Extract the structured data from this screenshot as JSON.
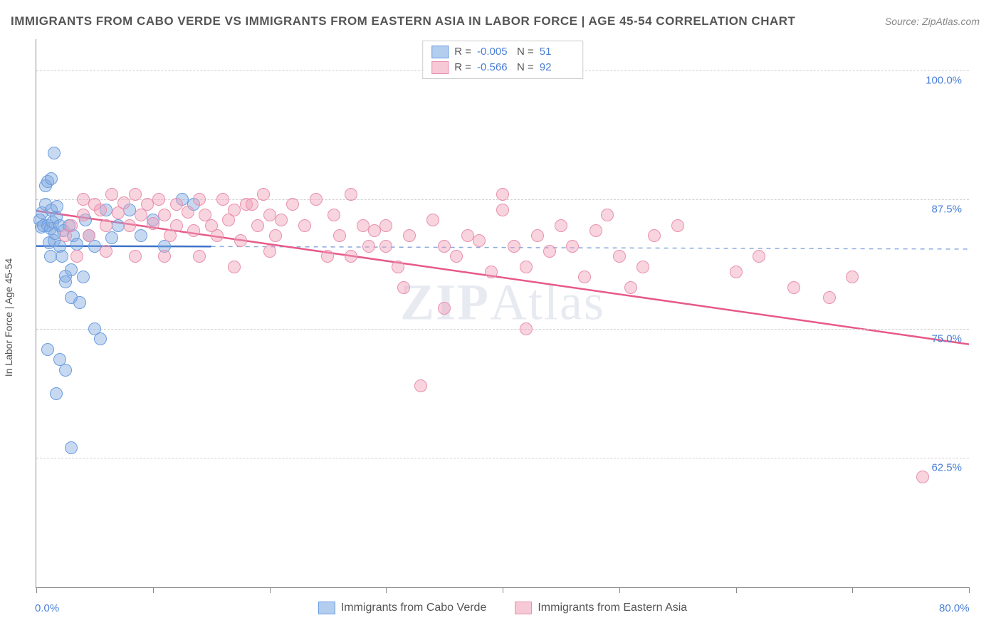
{
  "title": "IMMIGRANTS FROM CABO VERDE VS IMMIGRANTS FROM EASTERN ASIA IN LABOR FORCE | AGE 45-54 CORRELATION CHART",
  "source": "Source: ZipAtlas.com",
  "watermark_a": "ZIP",
  "watermark_b": "Atlas",
  "y_axis_title": "In Labor Force | Age 45-54",
  "chart": {
    "type": "scatter",
    "xlim": [
      0,
      80
    ],
    "ylim": [
      50,
      103
    ],
    "x_ticks": [
      0,
      10,
      20,
      30,
      40,
      50,
      60,
      70,
      80
    ],
    "x_tick_labels_shown": {
      "0": "0.0%",
      "80": "80.0%"
    },
    "y_ticks": [
      62.5,
      75.0,
      87.5,
      100.0
    ],
    "y_tick_labels": [
      "62.5%",
      "75.0%",
      "87.5%",
      "100.0%"
    ],
    "grid_color": "#d0d0d0",
    "background_color": "#ffffff",
    "marker_radius": 8,
    "marker_border_width": 1.5,
    "series": [
      {
        "name": "Immigrants from Cabo Verde",
        "color_fill": "rgba(130,170,225,0.45)",
        "color_stroke": "#6a9de0",
        "legend_swatch_fill": "#b3cdef",
        "legend_swatch_border": "#6a9de0",
        "r": "-0.005",
        "n": "51",
        "trend": {
          "x1": 0,
          "y1": 83.0,
          "x2": 15,
          "y2": 82.95,
          "dash_x2": 80,
          "dash_y2": 82.7,
          "color": "#3e73c9",
          "width": 2.5
        },
        "points": [
          [
            0.3,
            85.5
          ],
          [
            0.4,
            84.8
          ],
          [
            0.5,
            86.2
          ],
          [
            0.6,
            85.0
          ],
          [
            0.8,
            88.8
          ],
          [
            0.8,
            87.0
          ],
          [
            1.0,
            89.2
          ],
          [
            1.0,
            85.0
          ],
          [
            1.1,
            83.3
          ],
          [
            1.2,
            84.7
          ],
          [
            1.3,
            86.5
          ],
          [
            1.3,
            89.5
          ],
          [
            1.4,
            85.3
          ],
          [
            1.5,
            92.0
          ],
          [
            1.5,
            83.5
          ],
          [
            1.6,
            84.2
          ],
          [
            1.7,
            85.8
          ],
          [
            1.8,
            86.8
          ],
          [
            2.0,
            85.0
          ],
          [
            2.0,
            83.0
          ],
          [
            2.2,
            82.0
          ],
          [
            2.3,
            84.5
          ],
          [
            2.5,
            80.1
          ],
          [
            2.5,
            79.5
          ],
          [
            2.8,
            85.0
          ],
          [
            3.0,
            80.7
          ],
          [
            3.0,
            78.0
          ],
          [
            3.2,
            84.0
          ],
          [
            3.5,
            83.2
          ],
          [
            3.7,
            77.5
          ],
          [
            4.0,
            80.0
          ],
          [
            4.2,
            85.5
          ],
          [
            4.5,
            84.0
          ],
          [
            5.0,
            75.0
          ],
          [
            5.0,
            83.0
          ],
          [
            5.5,
            74.0
          ],
          [
            6.0,
            86.5
          ],
          [
            6.5,
            83.8
          ],
          [
            7.0,
            85.0
          ],
          [
            8.0,
            86.5
          ],
          [
            9.0,
            84.0
          ],
          [
            10.0,
            85.5
          ],
          [
            11.0,
            83.0
          ],
          [
            12.5,
            87.5
          ],
          [
            13.5,
            87.0
          ],
          [
            1.0,
            73.0
          ],
          [
            2.0,
            72.0
          ],
          [
            2.5,
            71.0
          ],
          [
            1.7,
            68.7
          ],
          [
            3.0,
            63.5
          ],
          [
            1.2,
            82.0
          ]
        ]
      },
      {
        "name": "Immigrants from Eastern Asia",
        "color_fill": "rgba(240,160,185,0.45)",
        "color_stroke": "#e890ae",
        "legend_swatch_fill": "#f7c8d6",
        "legend_swatch_border": "#e890ae",
        "r": "-0.566",
        "n": "92",
        "trend": {
          "x1": 0,
          "y1": 86.4,
          "x2": 80,
          "y2": 73.5,
          "color": "#e65a89",
          "width": 2.5
        },
        "points": [
          [
            3,
            85.0
          ],
          [
            4,
            86.0
          ],
          [
            4.5,
            84.0
          ],
          [
            5,
            87.0
          ],
          [
            5.5,
            86.5
          ],
          [
            6,
            85.0
          ],
          [
            6.5,
            88.0
          ],
          [
            7,
            86.2
          ],
          [
            7.5,
            87.2
          ],
          [
            8,
            85.0
          ],
          [
            8.5,
            88.0
          ],
          [
            9,
            86.0
          ],
          [
            9.5,
            87.0
          ],
          [
            10,
            85.2
          ],
          [
            10.5,
            87.5
          ],
          [
            11,
            86.0
          ],
          [
            11.5,
            84.0
          ],
          [
            12,
            87.0
          ],
          [
            12,
            85.0
          ],
          [
            13,
            86.3
          ],
          [
            13.5,
            84.5
          ],
          [
            14,
            87.5
          ],
          [
            14.5,
            86.0
          ],
          [
            15,
            85.0
          ],
          [
            15.5,
            84.0
          ],
          [
            16,
            87.5
          ],
          [
            16.5,
            85.5
          ],
          [
            17,
            86.5
          ],
          [
            17.5,
            83.5
          ],
          [
            18,
            87.0
          ],
          [
            18.5,
            87.0
          ],
          [
            19,
            85.0
          ],
          [
            19.5,
            88.0
          ],
          [
            20,
            86.0
          ],
          [
            20.5,
            84.0
          ],
          [
            21,
            85.5
          ],
          [
            22,
            87.0
          ],
          [
            23,
            85.0
          ],
          [
            24,
            87.5
          ],
          [
            25,
            82.0
          ],
          [
            25.5,
            86.0
          ],
          [
            26,
            84.0
          ],
          [
            27,
            88.0
          ],
          [
            27,
            82.0
          ],
          [
            28,
            85.0
          ],
          [
            28.5,
            83.0
          ],
          [
            29,
            84.5
          ],
          [
            30,
            83.0
          ],
          [
            30,
            85.0
          ],
          [
            31,
            81.0
          ],
          [
            31.5,
            79.0
          ],
          [
            32,
            84.0
          ],
          [
            33,
            69.5
          ],
          [
            34,
            85.5
          ],
          [
            35,
            77.0
          ],
          [
            35,
            83.0
          ],
          [
            36,
            82.0
          ],
          [
            37,
            84.0
          ],
          [
            38,
            83.5
          ],
          [
            39,
            80.5
          ],
          [
            40,
            86.5
          ],
          [
            40,
            88.0
          ],
          [
            41,
            83.0
          ],
          [
            42,
            81.0
          ],
          [
            42,
            75.0
          ],
          [
            43,
            84.0
          ],
          [
            44,
            82.5
          ],
          [
            45,
            85.0
          ],
          [
            46,
            83.0
          ],
          [
            47,
            80.0
          ],
          [
            48,
            84.5
          ],
          [
            49,
            86.0
          ],
          [
            50,
            82.0
          ],
          [
            51,
            79.0
          ],
          [
            52,
            81.0
          ],
          [
            53,
            84.0
          ],
          [
            55,
            85.0
          ],
          [
            60,
            80.5
          ],
          [
            62,
            82.0
          ],
          [
            65,
            79.0
          ],
          [
            68,
            78.0
          ],
          [
            70,
            80.0
          ],
          [
            76,
            60.7
          ],
          [
            2.5,
            84.0
          ],
          [
            3.5,
            82.0
          ],
          [
            4,
            87.5
          ],
          [
            6,
            82.5
          ],
          [
            8.5,
            82.0
          ],
          [
            11,
            82.0
          ],
          [
            14,
            82.0
          ],
          [
            17,
            81.0
          ],
          [
            20,
            82.5
          ]
        ]
      }
    ]
  },
  "legend_top_labels": {
    "r_label": "R =",
    "n_label": "N ="
  }
}
